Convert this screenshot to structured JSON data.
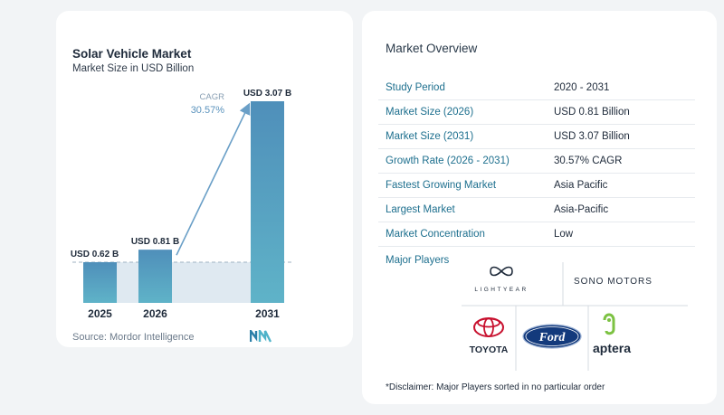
{
  "chart_data": {
    "type": "bar",
    "title": "Solar Vehicle Market",
    "subtitle": "Market Size in USD Billion",
    "categories": [
      "2025",
      "2026",
      "2031"
    ],
    "values": [
      0.62,
      0.81,
      3.07
    ],
    "value_labels": [
      "USD 0.62 B",
      "USD 0.81 B",
      "USD 3.07 B"
    ],
    "cagr_label": "CAGR",
    "cagr_value": "30.57%",
    "ylim": [
      0,
      3.25
    ],
    "bar_color": "#4f8fba",
    "bar_color_end": "#5fb3c8",
    "arrow_color": "#6a9fc7",
    "baseline_color": "#9fb2c2"
  },
  "source": {
    "text": "Source:  Mordor Intelligence",
    "logo_icon": "mordor-intelligence-logo-icon"
  },
  "overview": {
    "heading": "Market Overview",
    "rows": [
      {
        "label": "Study Period",
        "value": "2020 - 2031"
      },
      {
        "label": "Market Size (2026)",
        "value": "USD 0.81 Billion"
      },
      {
        "label": "Market Size (2031)",
        "value": "USD 3.07 Billion"
      },
      {
        "label": "Growth Rate (2026 - 2031)",
        "value": "30.57% CAGR"
      },
      {
        "label": "Fastest Growing Market",
        "value": "Asia Pacific"
      },
      {
        "label": "Largest Market",
        "value": "Asia-Pacific"
      },
      {
        "label": "Market Concentration",
        "value": "Low"
      }
    ],
    "players_label": "Major Players",
    "players": [
      "LIGHTYEAR",
      "SONO MOTORS",
      "TOYOTA",
      "Ford",
      "aptera"
    ],
    "disclaimer": "*Disclaimer: Major Players sorted in no particular order"
  }
}
